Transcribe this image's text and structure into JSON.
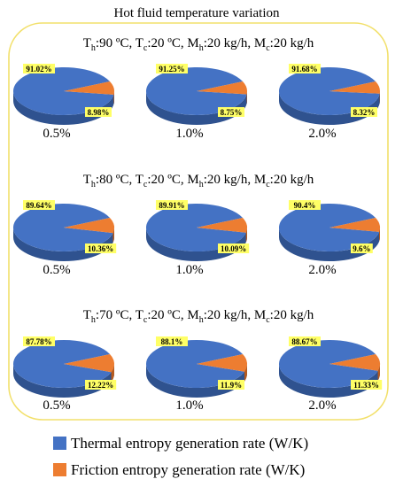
{
  "figure": {
    "title": "Hot fluid temperature variation"
  },
  "colors": {
    "thermal": "#4472C4",
    "thermal_dark": "#2F528F",
    "friction": "#ED7D31",
    "friction_dark": "#B65A1E",
    "label_bg": "#FFFF66",
    "frame": "#F2E06B"
  },
  "chart_data": [
    {
      "type": "pie",
      "group": "Th:90 ºC, Tc:20 ºC, Mh:20 kg/h, Mc:20 kg/h",
      "charts": [
        {
          "label": "0.5%",
          "values": [
            91.02,
            8.98
          ],
          "labels": [
            "91.02%",
            "8.98%"
          ]
        },
        {
          "label": "1.0%",
          "values": [
            91.25,
            8.75
          ],
          "labels": [
            "91.25%",
            "8.75%"
          ]
        },
        {
          "label": "2.0%",
          "values": [
            91.68,
            8.32
          ],
          "labels": [
            "91.68%",
            "8.32%"
          ]
        }
      ],
      "series_names": [
        "Thermal entropy generation rate (W/K)",
        "Friction entropy generation rate (W/K)"
      ]
    },
    {
      "type": "pie",
      "group": "Th:80 ºC, Tc:20 ºC, Mh:20 kg/h, Mc:20 kg/h",
      "charts": [
        {
          "label": "0.5%",
          "values": [
            89.64,
            10.36
          ],
          "labels": [
            "89.64%",
            "10.36%"
          ]
        },
        {
          "label": "1.0%",
          "values": [
            89.91,
            10.09
          ],
          "labels": [
            "89.91%",
            "10.09%"
          ]
        },
        {
          "label": "2.0%",
          "values": [
            90.4,
            9.6
          ],
          "labels": [
            "90.4%",
            "9.6%"
          ]
        }
      ],
      "series_names": [
        "Thermal entropy generation rate (W/K)",
        "Friction entropy generation rate (W/K)"
      ]
    },
    {
      "type": "pie",
      "group": "Th:70 ºC, Tc:20 ºC, Mh:20 kg/h, Mc:20 kg/h",
      "charts": [
        {
          "label": "0.5%",
          "values": [
            87.78,
            12.22
          ],
          "labels": [
            "87.78%",
            "12.22%"
          ]
        },
        {
          "label": "1.0%",
          "values": [
            88.1,
            11.9
          ],
          "labels": [
            "88.1%",
            "11.9%"
          ]
        },
        {
          "label": "2.0%",
          "values": [
            88.67,
            11.33
          ],
          "labels": [
            "88.67%",
            "11.33%"
          ]
        }
      ],
      "series_names": [
        "Thermal entropy generation rate (W/K)",
        "Friction entropy generation rate (W/K)"
      ]
    }
  ],
  "groups": [
    {
      "T": "T",
      "h": "h",
      "Th_val": ":90 ºC, ",
      "c": "c",
      "Tc_val": ":20 ºC, M",
      "Mh_val": ":20 kg/h, M",
      "Mc_val": ":20 kg/h"
    },
    {
      "T": "T",
      "h": "h",
      "Th_val": ":80 ºC, ",
      "c": "c",
      "Tc_val": ":20 ºC, M",
      "Mh_val": ":20 kg/h, M",
      "Mc_val": ":20 kg/h"
    },
    {
      "T": "T",
      "h": "h",
      "Th_val": ":70 ºC, ",
      "c": "c",
      "Tc_val": ":20 ºC, M",
      "Mh_val": ":20 kg/h, M",
      "Mc_val": ":20 kg/h"
    }
  ],
  "legend": {
    "items": [
      {
        "label": "Thermal entropy generation rate (W/K)"
      },
      {
        "label": "Friction entropy generation rate (W/K)"
      }
    ]
  }
}
